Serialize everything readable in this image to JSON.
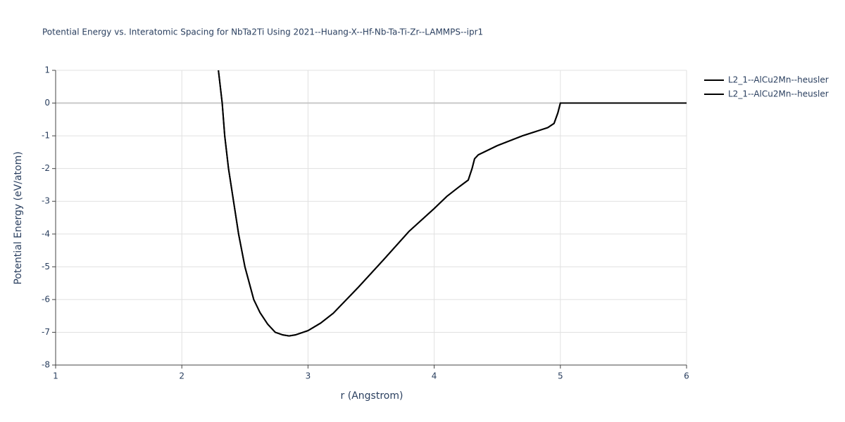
{
  "chart_data": {
    "type": "line",
    "title": "Potential Energy vs. Interatomic Spacing for NbTa2Ti Using 2021--Huang-X--Hf-Nb-Ta-Ti-Zr--LAMMPS--ipr1",
    "x_label": "r (Angstrom)",
    "y_label": "Potential Energy (eV/atom)",
    "x": [
      2.29,
      2.32,
      2.34,
      2.37,
      2.41,
      2.45,
      2.5,
      2.57,
      2.62,
      2.68,
      2.74,
      2.8,
      2.85,
      2.9,
      3.0,
      3.1,
      3.2,
      3.4,
      3.6,
      3.8,
      4.0,
      4.1,
      4.2,
      4.27,
      4.3,
      4.32,
      4.35,
      4.5,
      4.7,
      4.9,
      4.95,
      4.98,
      5.0,
      6.0
    ],
    "series": [
      {
        "name": "L2_1--AlCu2Mn--heusler",
        "color": "#000000",
        "values": [
          1,
          0,
          -1,
          -2,
          -3,
          -4,
          -5,
          -6,
          -6.4,
          -6.75,
          -7,
          -7.08,
          -7.11,
          -7.08,
          -6.95,
          -6.72,
          -6.42,
          -5.62,
          -4.78,
          -3.92,
          -3.22,
          -2.85,
          -2.55,
          -2.35,
          -2.0,
          -1.7,
          -1.58,
          -1.3,
          -1.0,
          -0.75,
          -0.62,
          -0.3,
          0,
          0
        ]
      },
      {
        "name": "L2_1--AlCu2Mn--heusler",
        "color": "#000000",
        "values": [
          1,
          0,
          -1,
          -2,
          -3,
          -4,
          -5,
          -6,
          -6.4,
          -6.75,
          -7,
          -7.08,
          -7.11,
          -7.08,
          -6.95,
          -6.72,
          -6.42,
          -5.62,
          -4.78,
          -3.92,
          -3.22,
          -2.85,
          -2.55,
          -2.35,
          -2.0,
          -1.7,
          -1.58,
          -1.3,
          -1.0,
          -0.75,
          -0.62,
          -0.3,
          0,
          0
        ]
      }
    ],
    "xlim": [
      1,
      6
    ],
    "ylim": [
      -8,
      1
    ],
    "xticks": [
      1,
      2,
      3,
      4,
      5,
      6
    ],
    "yticks": [
      1,
      0,
      -1,
      -2,
      -3,
      -4,
      -5,
      -6,
      -7,
      -8
    ],
    "grid": true,
    "legend": "outside-top-right"
  }
}
